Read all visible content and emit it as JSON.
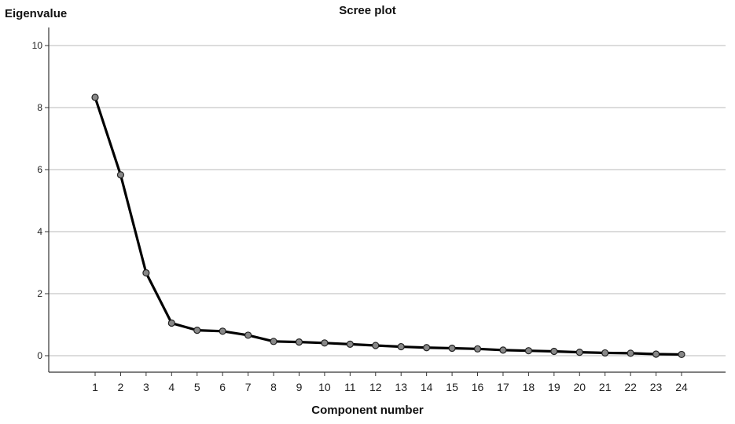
{
  "chart_data": {
    "type": "line",
    "title": "Scree plot",
    "xlabel": "Component number",
    "ylabel": "Eigenvalue",
    "x": [
      1,
      2,
      3,
      4,
      5,
      6,
      7,
      8,
      9,
      10,
      11,
      12,
      13,
      14,
      15,
      16,
      17,
      18,
      19,
      20,
      21,
      22,
      23,
      24
    ],
    "y": [
      8.33,
      5.83,
      2.67,
      1.05,
      0.82,
      0.79,
      0.66,
      0.46,
      0.44,
      0.41,
      0.37,
      0.33,
      0.29,
      0.26,
      0.24,
      0.22,
      0.18,
      0.16,
      0.14,
      0.11,
      0.09,
      0.08,
      0.05,
      0.04
    ],
    "ylim": [
      0,
      10.5
    ],
    "yticks": [
      0,
      2,
      4,
      6,
      8,
      10
    ],
    "grid": "horizontal",
    "legend": "none",
    "colors": {
      "line": "#000000",
      "marker_fill": "#888888",
      "grid": "#c8c8c8",
      "axis": "#333333"
    }
  }
}
